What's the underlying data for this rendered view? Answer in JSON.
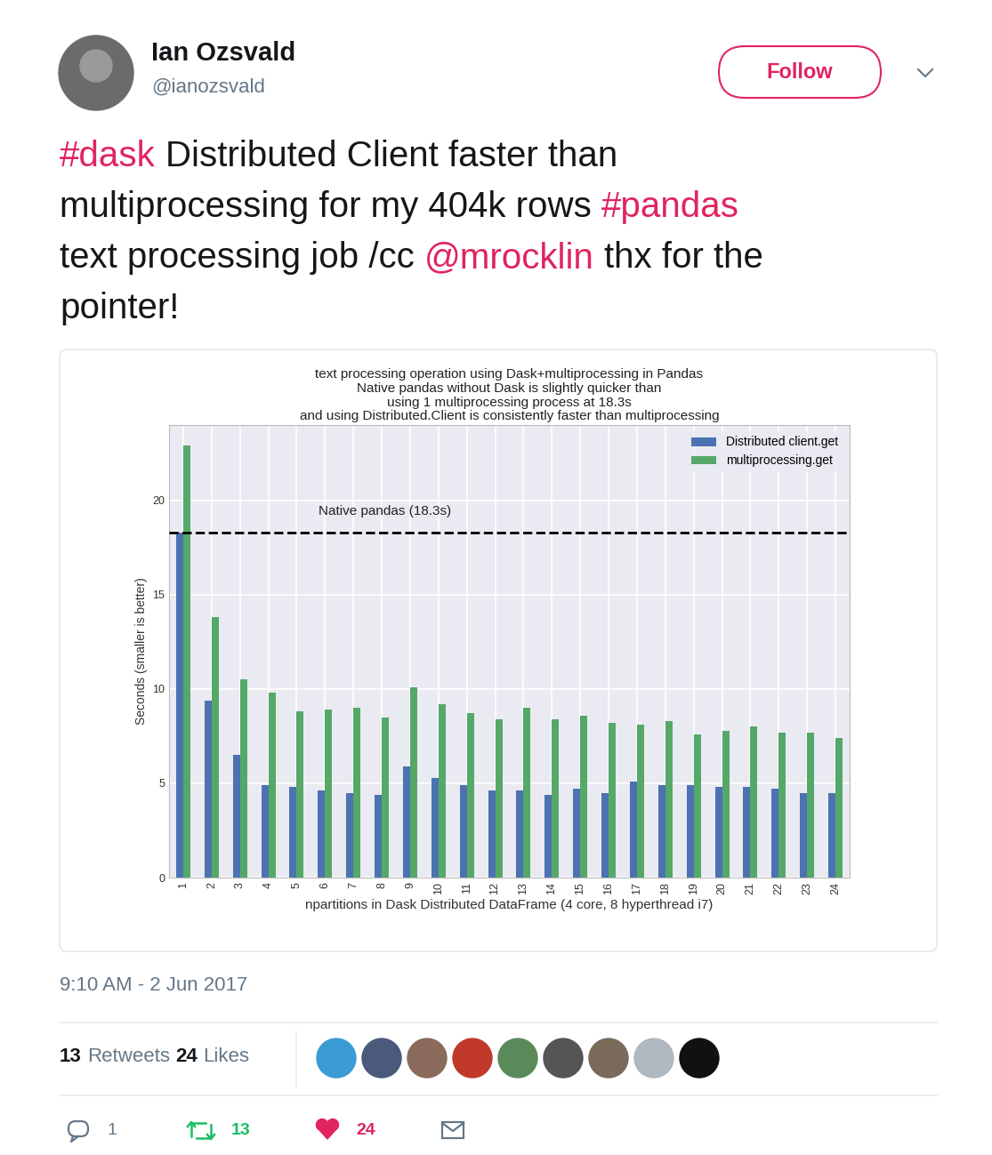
{
  "tweet": {
    "author": {
      "name": "Ian Ozsvald",
      "handle": "@ianozsvald"
    },
    "follow_button": "Follow",
    "text_lines": [
      [
        {
          "text": "#dask",
          "link": true
        },
        {
          "text": " Distributed Client faster than",
          "link": false
        }
      ],
      [
        {
          "text": "multiprocessing for my 404k rows ",
          "link": false
        },
        {
          "text": "#pandas",
          "link": true
        }
      ],
      [
        {
          "text": "text processing job /cc ",
          "link": false
        },
        {
          "text": "@mrocklin",
          "link": true
        },
        {
          "text": " thx for the",
          "link": false
        }
      ],
      [
        {
          "text": "pointer!",
          "link": false
        }
      ]
    ],
    "timestamp": "9:10 AM - 2 Jun 2017",
    "stats": {
      "retweets": {
        "count": 13,
        "label": "Retweets"
      },
      "likes": {
        "count": 24,
        "label": "Likes"
      }
    },
    "actions": {
      "replies": 1,
      "retweets": 13,
      "likes": 24
    }
  },
  "chart_data": {
    "type": "bar",
    "title": "text processing operation using Dask+multiprocessing in Pandas\nNative pandas without Dask is slightly quicker than\nusing 1 multiprocessing process at 18.3s\nand using Distributed.Client is consistently faster than multiprocessing",
    "x_label": "npartitions in Dask Distributed DataFrame (4 core, 8 hyperthread i7)",
    "y_label": "Seconds (smaller is better)",
    "categories": [
      "1",
      "2",
      "3",
      "4",
      "5",
      "6",
      "7",
      "8",
      "9",
      "10",
      "11",
      "12",
      "13",
      "14",
      "15",
      "16",
      "17",
      "18",
      "19",
      "20",
      "21",
      "22",
      "23",
      "24"
    ],
    "series": [
      {
        "name": "Distributed client.get",
        "color": "#4C72B0",
        "values": [
          18.3,
          9.4,
          6.5,
          4.9,
          4.8,
          4.6,
          4.5,
          4.4,
          5.9,
          5.3,
          4.9,
          4.6,
          4.6,
          4.4,
          4.7,
          4.5,
          5.1,
          4.9,
          4.9,
          4.8,
          4.8,
          4.7,
          4.5,
          4.5
        ]
      },
      {
        "name": "multiprocessing.get",
        "color": "#55A868",
        "values": [
          22.9,
          13.8,
          10.5,
          9.8,
          8.8,
          8.9,
          9.0,
          8.5,
          10.1,
          9.2,
          8.7,
          8.4,
          9.0,
          8.4,
          8.6,
          8.2,
          8.1,
          8.3,
          7.6,
          7.8,
          8.0,
          7.7,
          7.7,
          7.4
        ]
      }
    ],
    "ylim": [
      0,
      24
    ],
    "yticks": [
      0,
      5,
      10,
      15,
      20
    ],
    "grid": true,
    "legend": "upper right",
    "reference_line": {
      "value": 18.3,
      "label": "Native pandas (18.3s)",
      "line_style": "dashed",
      "color": "#000000"
    }
  }
}
